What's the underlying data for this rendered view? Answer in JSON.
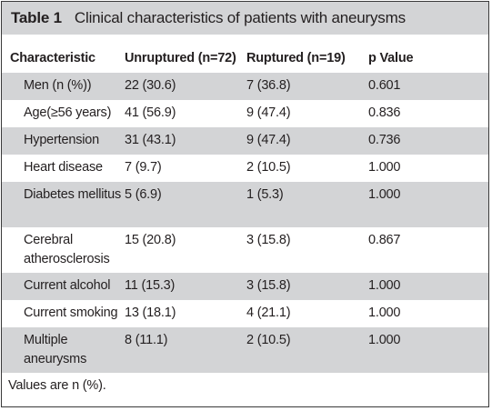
{
  "table": {
    "label": "Table 1",
    "caption": "Clinical characteristics of patients with aneurysms",
    "headers": {
      "characteristic": "Characteristic",
      "unruptured": "Unruptured (n=72)",
      "ruptured": "Ruptured (n=19)",
      "p_value": "p Value"
    },
    "rows": [
      {
        "characteristic": "Men (n (%))",
        "unruptured": "22 (30.6)",
        "ruptured": "7 (36.8)",
        "p_value": "0.601"
      },
      {
        "characteristic": "Age(≥56 years)",
        "unruptured": "41 (56.9)",
        "ruptured": "9 (47.4)",
        "p_value": "0.836"
      },
      {
        "characteristic": "Hypertension",
        "unruptured": "31 (43.1)",
        "ruptured": "9 (47.4)",
        "p_value": "0.736"
      },
      {
        "characteristic": "Heart disease",
        "unruptured": "7 (9.7)",
        "ruptured": "2 (10.5)",
        "p_value": "1.000"
      },
      {
        "characteristic": "Diabetes mellitus",
        "unruptured": "5 (6.9)",
        "ruptured": "1 (5.3)",
        "p_value": "1.000"
      },
      {
        "characteristic": "Cerebral atherosclerosis",
        "unruptured": "15 (20.8)",
        "ruptured": "3 (15.8)",
        "p_value": "0.867"
      },
      {
        "characteristic": "Current alcohol",
        "unruptured": "11 (15.3)",
        "ruptured": "3 (15.8)",
        "p_value": "1.000"
      },
      {
        "characteristic": "Current smoking",
        "unruptured": "13 (18.1)",
        "ruptured": "4 (21.1)",
        "p_value": "1.000"
      },
      {
        "characteristic": "Multiple aneurysms",
        "unruptured": "8 (11.1)",
        "ruptured": "2 (10.5)",
        "p_value": "1.000"
      }
    ],
    "footnote": "Values are n (%)."
  },
  "colors": {
    "shade": "#d3d4d6",
    "text": "#231f20",
    "border": "#3a3a3a"
  }
}
